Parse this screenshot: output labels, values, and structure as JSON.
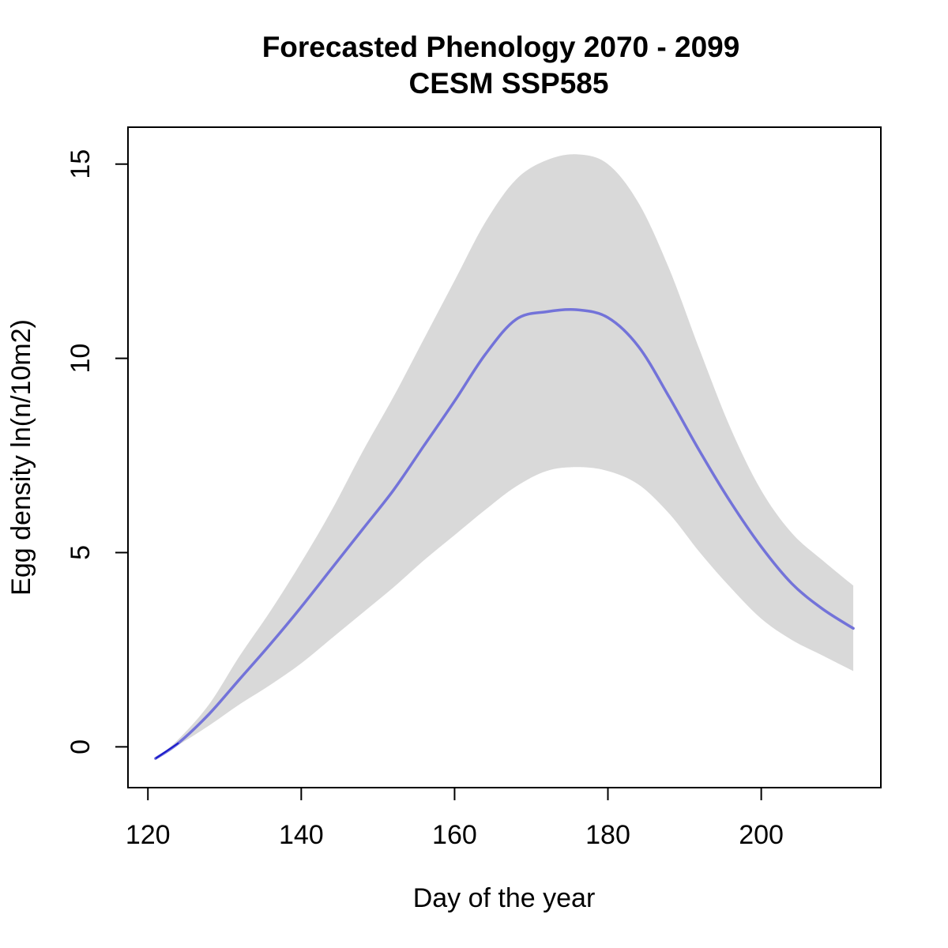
{
  "chart_data": {
    "type": "line",
    "title": "Forecasted Phenology 2070 - 2099",
    "subtitle": "CESM SSP585",
    "xlabel": "Day of the year",
    "ylabel": "Egg density ln(n/10m2)",
    "xlim": [
      117.4,
      215.6
    ],
    "ylim": [
      -1.05,
      15.95
    ],
    "x_ticks": [
      120,
      140,
      160,
      180,
      200
    ],
    "y_ticks": [
      0,
      5,
      10,
      15
    ],
    "x_tick_labels": [
      "120",
      "140",
      "160",
      "180",
      "200"
    ],
    "y_tick_labels": [
      "0",
      "5",
      "10",
      "15"
    ],
    "grid": false,
    "legend": "none",
    "colors": {
      "line": "#7373d9",
      "band": "#d9d9d9",
      "line_start": "#1a1acc"
    },
    "series": [
      {
        "role": "mean",
        "x": [
          121,
          124,
          128,
          132,
          136,
          140,
          144,
          148,
          152,
          156,
          160,
          164,
          168,
          172,
          176,
          180,
          184,
          188,
          192,
          196,
          200,
          204,
          208,
          212
        ],
        "y": [
          -0.3,
          0.1,
          0.85,
          1.75,
          2.65,
          3.6,
          4.6,
          5.6,
          6.6,
          7.75,
          8.9,
          10.1,
          11.0,
          11.2,
          11.25,
          11.05,
          10.3,
          9.0,
          7.6,
          6.3,
          5.15,
          4.2,
          3.55,
          3.05
        ]
      },
      {
        "role": "upper",
        "x": [
          121,
          124,
          128,
          132,
          136,
          140,
          144,
          148,
          152,
          156,
          160,
          164,
          168,
          172,
          176,
          180,
          184,
          188,
          192,
          196,
          200,
          204,
          208,
          212
        ],
        "y": [
          -0.3,
          0.2,
          1.1,
          2.35,
          3.5,
          4.75,
          6.1,
          7.6,
          9.0,
          10.5,
          12.0,
          13.5,
          14.6,
          15.1,
          15.25,
          15.0,
          14.0,
          12.3,
          10.2,
          8.2,
          6.6,
          5.5,
          4.8,
          4.15
        ]
      },
      {
        "role": "lower",
        "x": [
          121,
          124,
          128,
          132,
          136,
          140,
          144,
          148,
          152,
          156,
          160,
          164,
          168,
          172,
          176,
          180,
          184,
          188,
          192,
          196,
          200,
          204,
          208,
          212
        ],
        "y": [
          -0.3,
          0.05,
          0.55,
          1.1,
          1.6,
          2.15,
          2.8,
          3.45,
          4.1,
          4.8,
          5.45,
          6.1,
          6.7,
          7.1,
          7.2,
          7.1,
          6.75,
          6.0,
          5.0,
          4.1,
          3.3,
          2.75,
          2.35,
          1.95
        ]
      }
    ]
  }
}
